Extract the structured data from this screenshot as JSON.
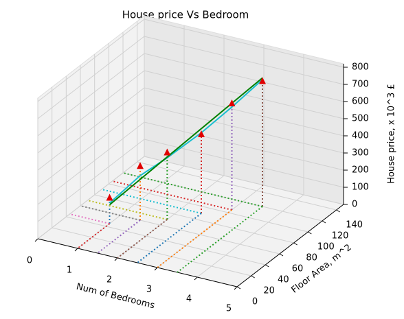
{
  "chart_data": {
    "type": "scatter3d",
    "title": "House price Vs Bedroom",
    "xlabel": "Num of Bedrooms",
    "ylabel": "Floor Area, m^2",
    "zlabel": "House price, x 10^3 £",
    "x": [
      1,
      1.5,
      2,
      2.5,
      3,
      3.5
    ],
    "y": [
      45,
      60,
      70,
      90,
      105,
      120
    ],
    "z": [
      150,
      315,
      390,
      460,
      620,
      730
    ],
    "color": "#e00000",
    "drop_colors": [
      "#1f77b4",
      "#ff7f0e",
      "#2ca02c",
      "#d62728",
      "#9467bd",
      "#8c564b"
    ],
    "floor_colors": [
      "#e377c2",
      "#7f7f7f",
      "#bcbd22",
      "#17becf",
      "#d62728",
      "#2ca02c"
    ],
    "fit": {
      "color": "green",
      "x": [
        1,
        3.5
      ],
      "y": [
        45,
        120
      ],
      "z": [
        110,
        750
      ]
    },
    "curve": {
      "color": "#17becf",
      "x": [
        1,
        1.5,
        2,
        2.5,
        3,
        3.5
      ],
      "y": [
        45,
        60,
        70,
        90,
        105,
        120
      ],
      "z": [
        120,
        260,
        360,
        470,
        600,
        740
      ]
    },
    "xlim": [
      0,
      5
    ],
    "ylim": [
      0,
      150
    ],
    "zlim": [
      0,
      820
    ],
    "xticks": [
      0,
      1,
      2,
      3,
      4,
      5
    ],
    "yticks": [
      0,
      20,
      40,
      60,
      80,
      100,
      120,
      140
    ],
    "zticks": [
      0,
      100,
      200,
      300,
      400,
      500,
      600,
      700,
      800
    ],
    "grid": true
  }
}
